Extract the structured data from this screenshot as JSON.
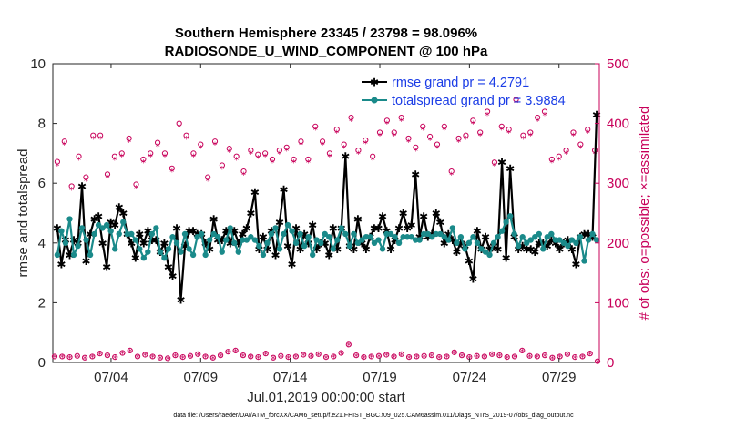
{
  "chart_data": {
    "type": "line",
    "title_line1": "Southern Hemisphere 23345 / 23798 = 98.096%",
    "title_line2": "RADIOSONDE_U_WIND_COMPONENT @ 100 hPa",
    "ylabel_left": "rmse and totalspread",
    "ylabel_right": "# of obs: o=possible; ×=assimilated",
    "xlabel": "Jul.01,2019 00:00:00 start",
    "footnote": "data file: /Users/raeder/DAI/ATM_forcXX/CAM6_setup/f.e21.FHIST_BGC.f09_025.CAM6assim.011/Diags_NTrS_2019-07/obs_diag_output.nc",
    "x_range_days": [
      0.75,
      31.25
    ],
    "ylim_left": [
      0,
      10
    ],
    "ylim_right": [
      0,
      500
    ],
    "yticks_left": [
      "0",
      "2",
      "4",
      "6",
      "8",
      "10"
    ],
    "yticks_right": [
      "0",
      "100",
      "200",
      "300",
      "400",
      "500"
    ],
    "xticks": [
      {
        "day": 4,
        "label": "07/04"
      },
      {
        "day": 9,
        "label": "07/09"
      },
      {
        "day": 14,
        "label": "07/14"
      },
      {
        "day": 19,
        "label": "07/19"
      },
      {
        "day": 24,
        "label": "07/24"
      },
      {
        "day": 29,
        "label": "07/29"
      }
    ],
    "colors": {
      "rmse": "#000000",
      "spread": "#1a8a8a",
      "obs": "#c8005a",
      "legend_text": "#1a3ce6",
      "right_axis": "#c8005a"
    },
    "series": [
      {
        "name": "rmse grand pr = 4.2791",
        "values": [
          4.5,
          3.3,
          4.1,
          3.6,
          4.1,
          4.0,
          5.9,
          3.4,
          4.3,
          4.8,
          4.9,
          4.0,
          3.2,
          4.7,
          4.6,
          5.2,
          5.0,
          4.3,
          4.0,
          3.5,
          4.3,
          4.0,
          4.4,
          4.1,
          4.1,
          3.7,
          4.0,
          3.2,
          2.9,
          4.5,
          2.1,
          3.9,
          4.4,
          4.4,
          4.3,
          4.3,
          4.0,
          3.8,
          4.8,
          4.1,
          4.1,
          4.4,
          4.0,
          4.4,
          4.0,
          4.3,
          4.5,
          5.0,
          5.7,
          3.8,
          4.2,
          3.8,
          4.4,
          3.6,
          4.7,
          5.8,
          3.9,
          3.3,
          4.5,
          3.8,
          4.3,
          4.0,
          4.6,
          3.8,
          4.0,
          4.0,
          3.6,
          4.5,
          3.8,
          4.5,
          6.9,
          3.9,
          3.8,
          4.8,
          4.0,
          3.8,
          4.2,
          4.5,
          4.5,
          4.9,
          4.4,
          3.8,
          4.1,
          4.5,
          5.0,
          4.5,
          4.6,
          6.3,
          4.2,
          4.9,
          4.2,
          4.3,
          5.0,
          4.7,
          4.0,
          4.3,
          4.1,
          3.7,
          4.0,
          3.9,
          3.4,
          2.8,
          4.4,
          3.8,
          4.2,
          3.8,
          3.9,
          3.8,
          6.7,
          3.5,
          6.5,
          4.2,
          3.8,
          3.9,
          3.8,
          3.8,
          3.7,
          4.0,
          4.0,
          3.9,
          4.1,
          4.0,
          3.8,
          4.0,
          4.1,
          3.8,
          3.3,
          4.2,
          4.3,
          4.3,
          4.2,
          8.3
        ],
        "color": "#000000"
      },
      {
        "name": "totalspread grand pr = 3.9884",
        "values": [
          3.6,
          4.4,
          4.0,
          4.8,
          3.6,
          3.9,
          4.5,
          4.1,
          3.6,
          4.3,
          4.6,
          4.5,
          4.6,
          4.4,
          3.8,
          4.3,
          4.7,
          4.3,
          4.3,
          4.1,
          3.8,
          3.5,
          3.7,
          4.3,
          4.5,
          3.7,
          3.5,
          3.8,
          4.2,
          4.0,
          3.7,
          4.3,
          3.8,
          3.6,
          4.2,
          4.3,
          3.6,
          4.1,
          4.3,
          4.2,
          3.7,
          4.1,
          4.5,
          4.0,
          3.7,
          4.1,
          4.1,
          4.2,
          4.1,
          3.9,
          3.6,
          4.0,
          4.3,
          4.5,
          3.8,
          4.3,
          4.6,
          4.4,
          4.0,
          4.3,
          3.9,
          4.2,
          3.6,
          4.1,
          4.0,
          4.3,
          4.2,
          3.8,
          4.1,
          4.5,
          4.3,
          3.9,
          4.3,
          4.0,
          4.1,
          4.2,
          4.2,
          4.0,
          4.1,
          3.8,
          4.3,
          4.3,
          4.2,
          4.0,
          4.2,
          4.2,
          4.2,
          4.1,
          4.1,
          4.3,
          4.3,
          4.2,
          4.3,
          4.3,
          4.2,
          4.1,
          4.5,
          4.0,
          4.2,
          3.8,
          4.0,
          4.2,
          4.0,
          3.8,
          3.7,
          3.6,
          4.0,
          4.2,
          4.4,
          4.7,
          4.9,
          4.3,
          3.9,
          4.2,
          4.0,
          4.1,
          4.2,
          4.3,
          3.8,
          4.2,
          4.3,
          4.1,
          4.1,
          4.0,
          3.9,
          4.1,
          4.0,
          4.2,
          3.4,
          4.1,
          4.3,
          4.1
        ],
        "color": "#1a8a8a"
      }
    ],
    "obs_possible_peaks": [
      336,
      370,
      295,
      345,
      310,
      380,
      380,
      315,
      345,
      350,
      375,
      298,
      340,
      350,
      368,
      350,
      325,
      400,
      380,
      350,
      365,
      310,
      370,
      330,
      358,
      345,
      320,
      355,
      348,
      350,
      340,
      355,
      360,
      340,
      370,
      340,
      395,
      370,
      350,
      390,
      365,
      410,
      355,
      372,
      345,
      385,
      405,
      385,
      410,
      375,
      360,
      395,
      378,
      365,
      395,
      320,
      375,
      380,
      405,
      385,
      420,
      335,
      395,
      390,
      440,
      380,
      385,
      410,
      420,
      340,
      345,
      355,
      385,
      365,
      390,
      355
    ],
    "obs_assimilated_peaks": [
      330,
      365,
      290,
      340,
      305,
      375,
      375,
      310,
      340,
      345,
      370,
      293,
      335,
      345,
      363,
      345,
      320,
      395,
      375,
      345,
      360,
      305,
      365,
      325,
      353,
      340,
      315,
      350,
      343,
      345,
      335,
      350,
      355,
      335,
      365,
      335,
      390,
      365,
      345,
      385,
      360,
      405,
      350,
      367,
      340,
      380,
      400,
      380,
      405,
      370,
      355,
      390,
      373,
      360,
      390,
      315,
      370,
      375,
      400,
      380,
      415,
      330,
      390,
      385,
      435,
      375,
      380,
      405,
      415,
      335,
      340,
      350,
      380,
      360,
      385,
      350
    ],
    "obs_low_possible": [
      10,
      10,
      9,
      11,
      8,
      10,
      15,
      12,
      9,
      16,
      20,
      10,
      13,
      10,
      8,
      7,
      12,
      9,
      11,
      14,
      10,
      8,
      12,
      18,
      20,
      12,
      10,
      9,
      15,
      8,
      11,
      9,
      10,
      13,
      11,
      14,
      9,
      10,
      16,
      30,
      12,
      9,
      10,
      11,
      13,
      10,
      14,
      9,
      10,
      11,
      12,
      9,
      10,
      17,
      12,
      9,
      11,
      10,
      14,
      12,
      9,
      10,
      20,
      11,
      10,
      12,
      8,
      10,
      14,
      9,
      10,
      15,
      2
    ]
  },
  "legend": {
    "rmse_label": "rmse grand pr = 4.2791",
    "spread_label": "totalspread grand pr = 3.9884"
  }
}
